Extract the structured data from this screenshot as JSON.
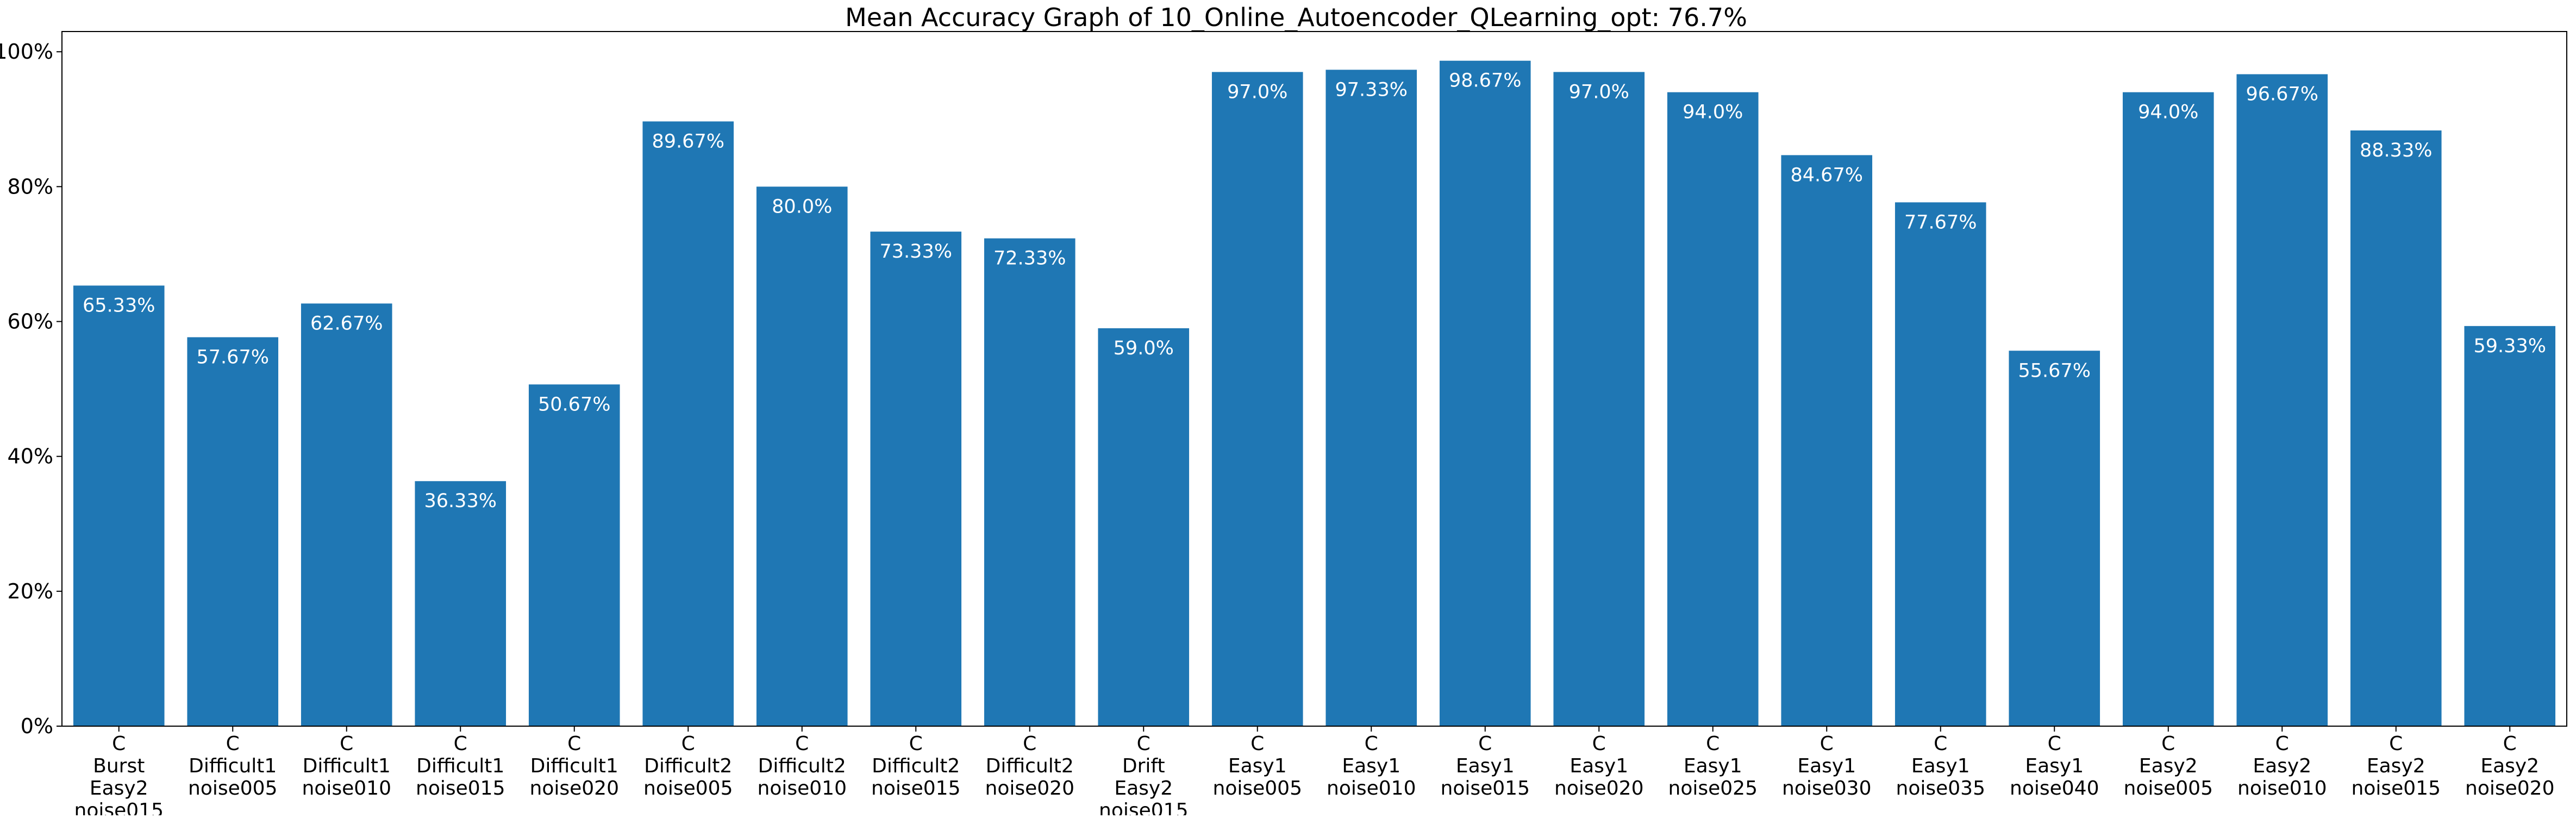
{
  "chart_data": {
    "type": "bar",
    "title": "Mean Accuracy Graph of 10_Online_Autoencoder_QLearning_opt: 76.7%",
    "xlabel": "",
    "ylabel": "",
    "ylim": [
      0,
      103
    ],
    "yticks": [
      0,
      20,
      40,
      60,
      80,
      100
    ],
    "ytick_labels": [
      "0%",
      "20%",
      "40%",
      "60%",
      "80%",
      "100%"
    ],
    "grid": false,
    "colors": {
      "bar": "#1f77b4",
      "data_label": "#ffffff"
    },
    "categories": [
      [
        "C",
        "Burst",
        "Easy2",
        "noise015"
      ],
      [
        "C",
        "Difficult1",
        "noise005"
      ],
      [
        "C",
        "Difficult1",
        "noise010"
      ],
      [
        "C",
        "Difficult1",
        "noise015"
      ],
      [
        "C",
        "Difficult1",
        "noise020"
      ],
      [
        "C",
        "Difficult2",
        "noise005"
      ],
      [
        "C",
        "Difficult2",
        "noise010"
      ],
      [
        "C",
        "Difficult2",
        "noise015"
      ],
      [
        "C",
        "Difficult2",
        "noise020"
      ],
      [
        "C",
        "Drift",
        "Easy2",
        "noise015"
      ],
      [
        "C",
        "Easy1",
        "noise005"
      ],
      [
        "C",
        "Easy1",
        "noise010"
      ],
      [
        "C",
        "Easy1",
        "noise015"
      ],
      [
        "C",
        "Easy1",
        "noise020"
      ],
      [
        "C",
        "Easy1",
        "noise025"
      ],
      [
        "C",
        "Easy1",
        "noise030"
      ],
      [
        "C",
        "Easy1",
        "noise035"
      ],
      [
        "C",
        "Easy1",
        "noise040"
      ],
      [
        "C",
        "Easy2",
        "noise005"
      ],
      [
        "C",
        "Easy2",
        "noise010"
      ],
      [
        "C",
        "Easy2",
        "noise015"
      ],
      [
        "C",
        "Easy2",
        "noise020"
      ]
    ],
    "values": [
      65.33,
      57.67,
      62.67,
      36.33,
      50.67,
      89.67,
      80.0,
      73.33,
      72.33,
      59.0,
      97.0,
      97.33,
      98.67,
      97.0,
      94.0,
      84.67,
      77.67,
      55.67,
      94.0,
      96.67,
      88.33,
      59.33
    ],
    "value_labels": [
      "65.33%",
      "57.67%",
      "62.67%",
      "36.33%",
      "50.67%",
      "89.67%",
      "80.0%",
      "73.33%",
      "72.33%",
      "59.0%",
      "97.0%",
      "97.33%",
      "98.67%",
      "97.0%",
      "94.0%",
      "84.67%",
      "77.67%",
      "55.67%",
      "94.0%",
      "96.67%",
      "88.33%",
      "59.33%"
    ]
  }
}
